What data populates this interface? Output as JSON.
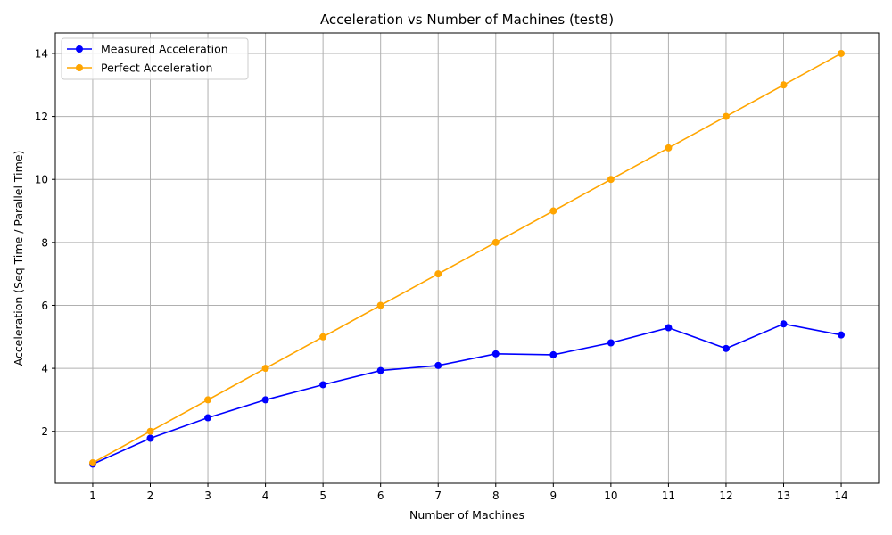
{
  "chart_data": {
    "type": "line",
    "title": "Acceleration vs Number of Machines (test8)",
    "xlabel": "Number of Machines",
    "ylabel": "Acceleration (Seq Time / Parallel Time)",
    "x": [
      1,
      2,
      3,
      4,
      5,
      6,
      7,
      8,
      9,
      10,
      11,
      12,
      13,
      14
    ],
    "xticks": [
      "1",
      "2",
      "3",
      "4",
      "5",
      "6",
      "7",
      "8",
      "9",
      "10",
      "11",
      "12",
      "13",
      "14"
    ],
    "yticks": [
      2,
      4,
      6,
      8,
      10,
      12,
      14
    ],
    "xlim": [
      0.35,
      14.65
    ],
    "ylim": [
      0.35,
      14.65
    ],
    "grid": true,
    "legend_position": "top-left",
    "series": [
      {
        "name": "Measured Acceleration",
        "color": "#0000ff",
        "marker": "circle",
        "values": [
          0.96,
          1.78,
          2.43,
          3.0,
          3.48,
          3.93,
          4.09,
          4.46,
          4.43,
          4.81,
          5.29,
          4.63,
          5.41,
          5.06
        ]
      },
      {
        "name": "Perfect Acceleration",
        "color": "#ffa500",
        "marker": "circle",
        "values": [
          1,
          2,
          3,
          4,
          5,
          6,
          7,
          8,
          9,
          10,
          11,
          12,
          13,
          14
        ]
      }
    ]
  }
}
